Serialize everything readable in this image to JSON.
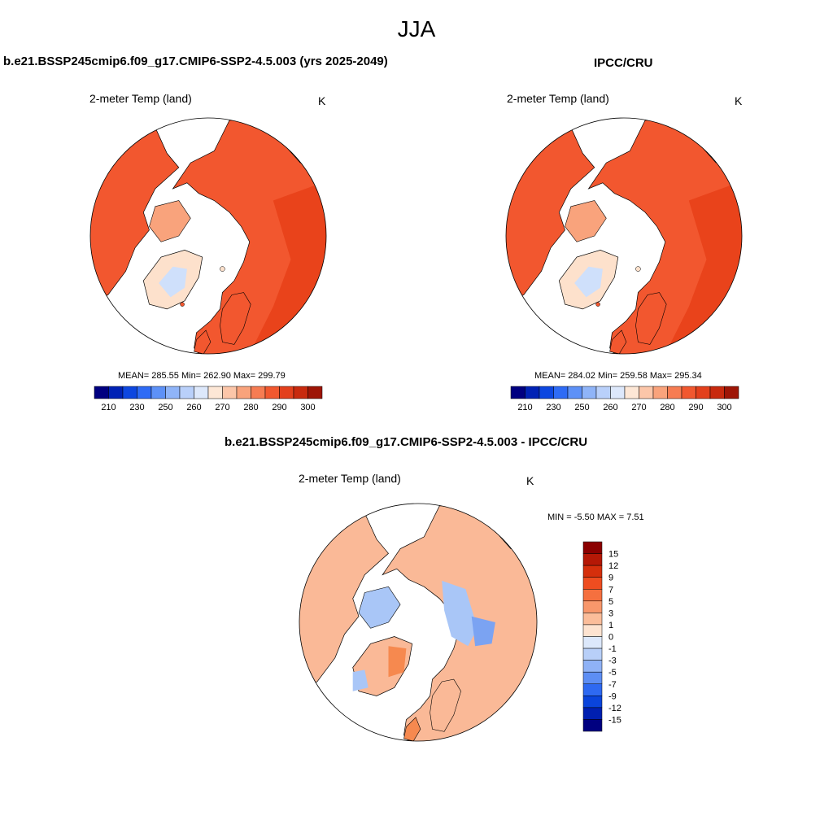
{
  "page": {
    "season": "JJA"
  },
  "panels": {
    "model": {
      "title": "b.e21.BSSP245cmip6.f09_g17.CMIP6-SSP2-4.5.003 (yrs 2025-2049)",
      "variable": "2-meter Temp (land)",
      "units": "K",
      "stats": "MEAN= 285.55  Min= 262.90  Max= 299.79"
    },
    "obs": {
      "title": "IPCC/CRU",
      "variable": "2-meter Temp (land)",
      "units": "K",
      "stats": "MEAN= 284.02  Min= 259.58  Max= 295.34"
    },
    "diff": {
      "title": "b.e21.BSSP245cmip6.f09_g17.CMIP6-SSP2-4.5.003 - IPCC/CRU",
      "variable": "2-meter Temp (land)",
      "units": "K",
      "minmax": "MIN =  -5.50 MAX =   7.51"
    }
  },
  "colorbars": {
    "abs": {
      "colors": [
        "#000080",
        "#0022b5",
        "#0d47e0",
        "#2e6bf5",
        "#5d91f7",
        "#8fb4f8",
        "#b9d0fa",
        "#dde8fb",
        "#fde7d6",
        "#fcc6a9",
        "#f9a37c",
        "#f67c52",
        "#f1582f",
        "#e3401c",
        "#c82a0e",
        "#9e1506"
      ],
      "labels": [
        "210",
        "230",
        "250",
        "260",
        "270",
        "280",
        "290",
        "300"
      ]
    },
    "diff": {
      "colors": [
        "#8b0000",
        "#b51806",
        "#d52f0c",
        "#ee4d20",
        "#f5703f",
        "#f8976b",
        "#fbbd9a",
        "#fde3d0",
        "#dce8fb",
        "#b8cff8",
        "#8fb2f6",
        "#5d8ef4",
        "#2e69f1",
        "#0a44db",
        "#001fb0",
        "#000080"
      ],
      "labels": [
        "15",
        "12",
        "9",
        "7",
        "5",
        "3",
        "1",
        "0",
        "-1",
        "-3",
        "-5",
        "-7",
        "-9",
        "-12",
        "-15"
      ]
    }
  },
  "maps": {
    "model": {
      "land_color": "#f2572f",
      "tropics_color": "#e9431b",
      "ice_color": "#fde1cc",
      "ice_core": "#cfe0fb"
    },
    "obs": {
      "land_color": "#f2572f",
      "tropics_color": "#e9431b",
      "ice_color": "#fde1cc",
      "ice_core": "#cfe0fb"
    },
    "diff": {
      "land_color": "#fab997",
      "warm_patch": "#f6894f",
      "cool_patch": "#a9c6f7",
      "strong_cool": "#7ba3f2"
    }
  }
}
